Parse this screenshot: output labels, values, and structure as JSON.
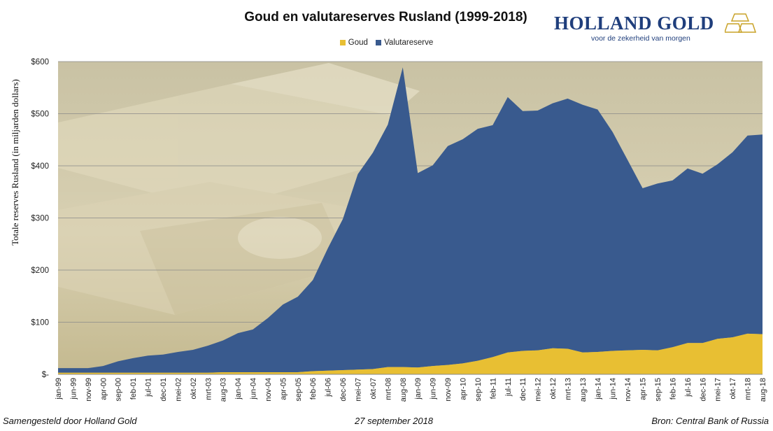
{
  "header": {
    "title": "Goud en valutareserves Rusland (1999-2018)",
    "brand_name": "HOLLAND GOLD",
    "brand_tagline": "voor de zekerheid van morgen",
    "brand_logo": "gold-bars-logo"
  },
  "footer": {
    "left": "Samengesteld door Holland Gold",
    "center": "27 september 2018",
    "right": "Bron: Central Bank of Russia"
  },
  "colors": {
    "goud": "#e8bf33",
    "valutareserve": "#395a8e",
    "brand": "#1f3e7c",
    "gridline": "#808080"
  },
  "chart_data": {
    "type": "area",
    "stacked": true,
    "title": "Goud en valutareserves Rusland (1999-2018)",
    "ylabel": "Totale reserves Rusland (in miljarden dollars)",
    "xlabel": "",
    "ylim": [
      0,
      600
    ],
    "yticks": [
      0,
      100,
      200,
      300,
      400,
      500,
      600
    ],
    "ytick_labels": [
      "$-",
      "$100",
      "$200",
      "$300",
      "$400",
      "$500",
      "$600"
    ],
    "xtick_labels": [
      "jan-99",
      "jun-99",
      "nov-99",
      "apr-00",
      "sep-00",
      "feb-01",
      "jul-01",
      "dec-01",
      "mei-02",
      "okt-02",
      "mrt-03",
      "aug-03",
      "jan-04",
      "jun-04",
      "nov-04",
      "apr-05",
      "sep-05",
      "feb-06",
      "jul-06",
      "dec-06",
      "mei-07",
      "okt-07",
      "mrt-08",
      "aug-08",
      "jan-09",
      "jun-09",
      "nov-09",
      "apr-10",
      "sep-10",
      "feb-11",
      "jul-11",
      "dec-11",
      "mei-12",
      "okt-12",
      "mrt-13",
      "aug-13",
      "jan-14",
      "jun-14",
      "nov-14",
      "apr-15",
      "sep-15",
      "feb-16",
      "jul-16",
      "dec-16",
      "mei-17",
      "okt-17",
      "mrt-18",
      "aug-18"
    ],
    "x_start": "jan-99",
    "x_end": "aug-18",
    "grid": true,
    "legend_position": "top-center",
    "background": "photo of stacked gold bars",
    "series": [
      {
        "name": "Goud",
        "color": "#e8bf33",
        "points": [
          [
            "jan-99",
            3
          ],
          [
            "jun-99",
            3
          ],
          [
            "nov-99",
            3
          ],
          [
            "apr-00",
            3
          ],
          [
            "sep-00",
            3
          ],
          [
            "feb-01",
            3
          ],
          [
            "jul-01",
            3
          ],
          [
            "dec-01",
            3
          ],
          [
            "mei-02",
            3
          ],
          [
            "okt-02",
            3
          ],
          [
            "mrt-03",
            3
          ],
          [
            "aug-03",
            4
          ],
          [
            "jan-04",
            4
          ],
          [
            "jun-04",
            4
          ],
          [
            "nov-04",
            4
          ],
          [
            "apr-05",
            4
          ],
          [
            "sep-05",
            4
          ],
          [
            "feb-06",
            6
          ],
          [
            "jul-06",
            7
          ],
          [
            "dec-06",
            8
          ],
          [
            "mei-07",
            9
          ],
          [
            "okt-07",
            10
          ],
          [
            "mrt-08",
            14
          ],
          [
            "aug-08",
            14
          ],
          [
            "jan-09",
            13
          ],
          [
            "jun-09",
            16
          ],
          [
            "nov-09",
            18
          ],
          [
            "apr-10",
            21
          ],
          [
            "sep-10",
            26
          ],
          [
            "feb-11",
            33
          ],
          [
            "jul-11",
            42
          ],
          [
            "dec-11",
            45
          ],
          [
            "mei-12",
            46
          ],
          [
            "okt-12",
            50
          ],
          [
            "mrt-13",
            49
          ],
          [
            "aug-13",
            42
          ],
          [
            "jan-14",
            43
          ],
          [
            "jun-14",
            45
          ],
          [
            "nov-14",
            46
          ],
          [
            "apr-15",
            47
          ],
          [
            "sep-15",
            46
          ],
          [
            "feb-16",
            52
          ],
          [
            "jul-16",
            60
          ],
          [
            "dec-16",
            60
          ],
          [
            "mei-17",
            68
          ],
          [
            "okt-17",
            71
          ],
          [
            "mrt-18",
            78
          ],
          [
            "aug-18",
            77
          ]
        ]
      },
      {
        "name": "Valutareserve",
        "color": "#395a8e",
        "points": [
          [
            "jan-99",
            9
          ],
          [
            "jun-99",
            9
          ],
          [
            "nov-99",
            9
          ],
          [
            "apr-00",
            13
          ],
          [
            "sep-00",
            22
          ],
          [
            "feb-01",
            28
          ],
          [
            "jul-01",
            33
          ],
          [
            "dec-01",
            35
          ],
          [
            "mei-02",
            40
          ],
          [
            "okt-02",
            44
          ],
          [
            "mrt-03",
            52
          ],
          [
            "aug-03",
            61
          ],
          [
            "jan-04",
            75
          ],
          [
            "jun-04",
            82
          ],
          [
            "nov-04",
            104
          ],
          [
            "apr-05",
            130
          ],
          [
            "sep-05",
            145
          ],
          [
            "feb-06",
            175
          ],
          [
            "jul-06",
            235
          ],
          [
            "dec-06",
            290
          ],
          [
            "mei-07",
            375
          ],
          [
            "okt-07",
            415
          ],
          [
            "mrt-08",
            465
          ],
          [
            "aug-08",
            575
          ],
          [
            "jan-09",
            373
          ],
          [
            "jun-09",
            385
          ],
          [
            "nov-09",
            420
          ],
          [
            "apr-10",
            430
          ],
          [
            "sep-10",
            445
          ],
          [
            "feb-11",
            445
          ],
          [
            "jul-11",
            490
          ],
          [
            "dec-11",
            460
          ],
          [
            "mei-12",
            460
          ],
          [
            "okt-12",
            470
          ],
          [
            "mrt-13",
            480
          ],
          [
            "aug-13",
            475
          ],
          [
            "jan-14",
            465
          ],
          [
            "jun-14",
            420
          ],
          [
            "nov-14",
            365
          ],
          [
            "apr-15",
            310
          ],
          [
            "sep-15",
            320
          ],
          [
            "feb-16",
            320
          ],
          [
            "jul-16",
            335
          ],
          [
            "dec-16",
            325
          ],
          [
            "mei-17",
            335
          ],
          [
            "okt-17",
            355
          ],
          [
            "mrt-18",
            380
          ],
          [
            "aug-18",
            383
          ]
        ]
      }
    ]
  }
}
